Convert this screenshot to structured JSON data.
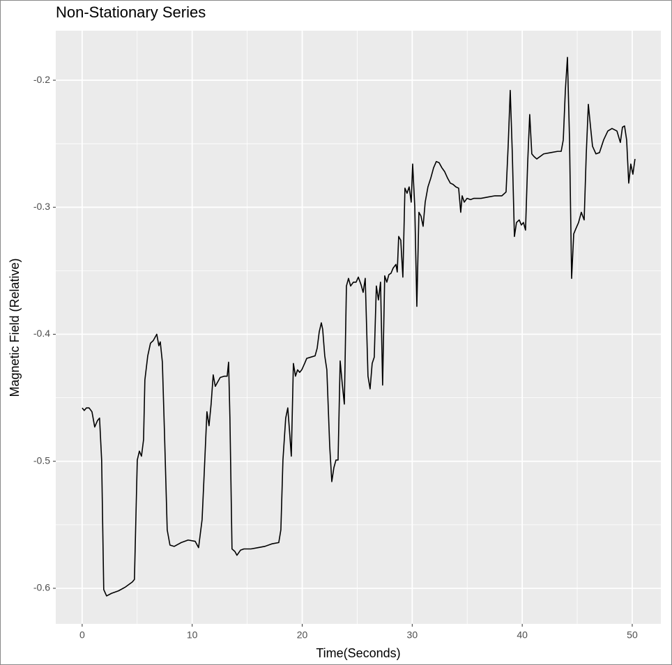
{
  "chart_data": {
    "type": "line",
    "title": "Non-Stationary Series",
    "x_label": "Time(Seconds)",
    "y_label": "Magnetic Field (Relative)",
    "color": "#000000",
    "grid": true,
    "background": "#ebebeb",
    "xlim": [
      -2.4,
      52.6
    ],
    "xticks": [
      0,
      10,
      20,
      30,
      40,
      50
    ],
    "x_minor_grid": [
      5,
      15,
      25,
      35,
      45
    ],
    "ylim": [
      -0.628,
      -0.161
    ],
    "yticks": [
      -0.6,
      -0.5,
      -0.4,
      -0.3,
      -0.2
    ],
    "y_minor_grid": [
      -0.55,
      -0.45,
      -0.35,
      -0.25
    ],
    "x": [
      0,
      0.19,
      0.38,
      0.63,
      0.89,
      1.14,
      1.39,
      1.58,
      1.77,
      1.96,
      2.22,
      2.66,
      3.3,
      3.93,
      4.56,
      4.75,
      5.01,
      5.2,
      5.39,
      5.58,
      5.7,
      5.96,
      6.21,
      6.46,
      6.78,
      6.97,
      7.1,
      7.29,
      7.48,
      7.73,
      7.98,
      8.37,
      9.0,
      9.63,
      10.27,
      10.58,
      10.9,
      11.09,
      11.34,
      11.53,
      11.72,
      11.91,
      12.1,
      12.29,
      12.55,
      12.93,
      13.18,
      13.31,
      13.43,
      13.62,
      13.88,
      14.07,
      14.39,
      14.7,
      15.34,
      15.97,
      16.6,
      17.24,
      17.87,
      18.06,
      18.25,
      18.5,
      18.69,
      18.88,
      19.01,
      19.2,
      19.39,
      19.58,
      19.77,
      19.96,
      20.22,
      20.41,
      20.79,
      21.17,
      21.36,
      21.55,
      21.74,
      21.86,
      22.05,
      22.24,
      22.5,
      22.69,
      22.88,
      23.07,
      23.26,
      23.45,
      23.64,
      23.83,
      24.02,
      24.21,
      24.4,
      24.65,
      24.9,
      25.1,
      25.35,
      25.54,
      25.73,
      25.98,
      26.17,
      26.36,
      26.55,
      26.74,
      26.93,
      27.12,
      27.31,
      27.5,
      27.69,
      27.88,
      28.07,
      28.26,
      28.52,
      28.64,
      28.77,
      28.96,
      29.15,
      29.34,
      29.53,
      29.72,
      29.91,
      30.04,
      30.23,
      30.42,
      30.61,
      30.8,
      30.99,
      31.18,
      31.43,
      31.69,
      31.94,
      32.19,
      32.45,
      32.7,
      32.95,
      33.21,
      33.46,
      33.71,
      33.97,
      34.22,
      34.41,
      34.54,
      34.73,
      34.98,
      35.3,
      35.61,
      36.25,
      36.88,
      37.52,
      38.15,
      38.53,
      38.72,
      38.91,
      39.1,
      39.29,
      39.48,
      39.73,
      39.92,
      40.11,
      40.3,
      40.49,
      40.68,
      40.87,
      41.06,
      41.32,
      41.95,
      42.59,
      43.22,
      43.54,
      43.73,
      43.92,
      44.11,
      44.3,
      44.49,
      44.68,
      44.87,
      45.12,
      45.37,
      45.63,
      45.82,
      46.01,
      46.2,
      46.39,
      46.7,
      47.02,
      47.4,
      47.78,
      48.16,
      48.61,
      48.92,
      49.11,
      49.3,
      49.49,
      49.68,
      49.87,
      50.06,
      50.25
    ],
    "values": [
      -0.458,
      -0.46,
      -0.458,
      -0.458,
      -0.461,
      -0.473,
      -0.468,
      -0.466,
      -0.499,
      -0.601,
      -0.606,
      -0.604,
      -0.602,
      -0.599,
      -0.595,
      -0.593,
      -0.499,
      -0.492,
      -0.496,
      -0.483,
      -0.436,
      -0.417,
      -0.407,
      -0.405,
      -0.4,
      -0.409,
      -0.406,
      -0.422,
      -0.477,
      -0.554,
      -0.566,
      -0.567,
      -0.564,
      -0.562,
      -0.563,
      -0.568,
      -0.546,
      -0.51,
      -0.461,
      -0.472,
      -0.455,
      -0.432,
      -0.441,
      -0.438,
      -0.434,
      -0.433,
      -0.433,
      -0.422,
      -0.466,
      -0.569,
      -0.571,
      -0.574,
      -0.57,
      -0.569,
      -0.569,
      -0.568,
      -0.567,
      -0.565,
      -0.564,
      -0.554,
      -0.499,
      -0.466,
      -0.458,
      -0.48,
      -0.496,
      -0.423,
      -0.433,
      -0.428,
      -0.43,
      -0.428,
      -0.423,
      -0.419,
      -0.418,
      -0.417,
      -0.411,
      -0.398,
      -0.391,
      -0.396,
      -0.417,
      -0.428,
      -0.488,
      -0.516,
      -0.505,
      -0.499,
      -0.499,
      -0.421,
      -0.439,
      -0.455,
      -0.362,
      -0.356,
      -0.362,
      -0.359,
      -0.359,
      -0.355,
      -0.361,
      -0.367,
      -0.356,
      -0.433,
      -0.443,
      -0.423,
      -0.418,
      -0.362,
      -0.373,
      -0.359,
      -0.44,
      -0.354,
      -0.359,
      -0.353,
      -0.352,
      -0.348,
      -0.345,
      -0.351,
      -0.323,
      -0.326,
      -0.355,
      -0.285,
      -0.289,
      -0.284,
      -0.296,
      -0.266,
      -0.299,
      -0.378,
      -0.304,
      -0.307,
      -0.315,
      -0.296,
      -0.284,
      -0.277,
      -0.269,
      -0.264,
      -0.265,
      -0.269,
      -0.272,
      -0.277,
      -0.281,
      -0.282,
      -0.284,
      -0.285,
      -0.304,
      -0.291,
      -0.296,
      -0.293,
      -0.294,
      -0.293,
      -0.293,
      -0.292,
      -0.291,
      -0.291,
      -0.288,
      -0.252,
      -0.208,
      -0.258,
      -0.323,
      -0.312,
      -0.31,
      -0.314,
      -0.312,
      -0.318,
      -0.266,
      -0.227,
      -0.258,
      -0.26,
      -0.262,
      -0.258,
      -0.257,
      -0.256,
      -0.256,
      -0.247,
      -0.208,
      -0.182,
      -0.247,
      -0.356,
      -0.321,
      -0.317,
      -0.312,
      -0.304,
      -0.31,
      -0.258,
      -0.219,
      -0.236,
      -0.252,
      -0.258,
      -0.257,
      -0.247,
      -0.24,
      -0.238,
      -0.24,
      -0.249,
      -0.237,
      -0.236,
      -0.247,
      -0.281,
      -0.266,
      -0.274,
      -0.262
    ]
  }
}
